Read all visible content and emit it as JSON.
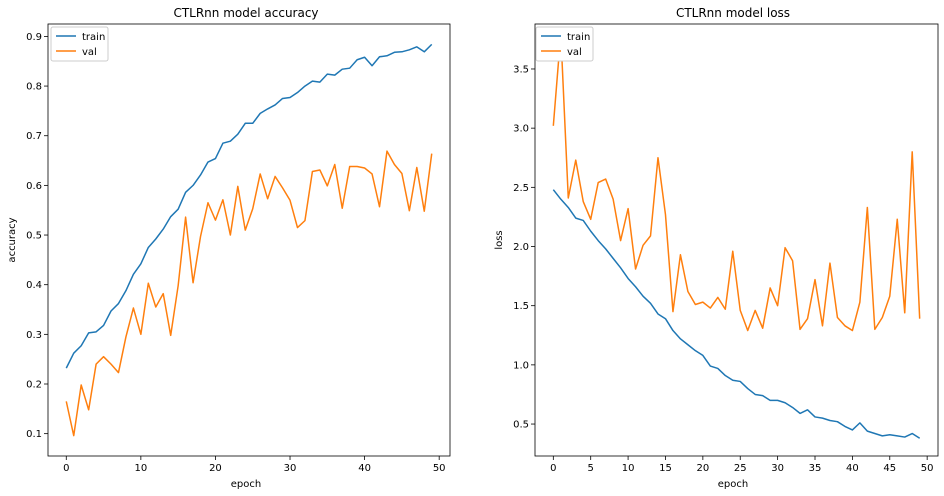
{
  "chart_data": [
    {
      "type": "line",
      "title": "CTLRnn model accuracy",
      "xlabel": "epoch",
      "ylabel": "accuracy",
      "xlim": [
        -2.45,
        51.45
      ],
      "ylim": [
        0.055,
        0.925
      ],
      "xticks": [
        0,
        10,
        20,
        30,
        40,
        50
      ],
      "yticks": [
        0.1,
        0.2,
        0.3,
        0.4,
        0.5,
        0.6,
        0.7,
        0.8,
        0.9
      ],
      "legend": "top-left",
      "grid": false,
      "x": [
        0,
        1,
        2,
        3,
        4,
        5,
        6,
        7,
        8,
        9,
        10,
        11,
        12,
        13,
        14,
        15,
        16,
        17,
        18,
        19,
        20,
        21,
        22,
        23,
        24,
        25,
        26,
        27,
        28,
        29,
        30,
        31,
        32,
        33,
        34,
        35,
        36,
        37,
        38,
        39,
        40,
        41,
        42,
        43,
        44,
        45,
        46,
        47,
        48,
        49
      ],
      "series": [
        {
          "name": "train",
          "color": "#1f77b4",
          "values": [
            0.232,
            0.262,
            0.277,
            0.303,
            0.305,
            0.318,
            0.347,
            0.362,
            0.388,
            0.421,
            0.442,
            0.475,
            0.492,
            0.512,
            0.537,
            0.552,
            0.586,
            0.6,
            0.621,
            0.647,
            0.654,
            0.685,
            0.689,
            0.703,
            0.725,
            0.725,
            0.745,
            0.754,
            0.762,
            0.775,
            0.777,
            0.787,
            0.8,
            0.81,
            0.808,
            0.824,
            0.822,
            0.834,
            0.836,
            0.853,
            0.858,
            0.841,
            0.859,
            0.861,
            0.868,
            0.869,
            0.873,
            0.879,
            0.869,
            0.884
          ]
        },
        {
          "name": "val",
          "color": "#ff7f0e",
          "values": [
            0.165,
            0.096,
            0.198,
            0.148,
            0.24,
            0.255,
            0.24,
            0.223,
            0.295,
            0.353,
            0.3,
            0.403,
            0.355,
            0.382,
            0.298,
            0.398,
            0.536,
            0.404,
            0.497,
            0.565,
            0.53,
            0.571,
            0.5,
            0.598,
            0.51,
            0.553,
            0.623,
            0.573,
            0.618,
            0.595,
            0.57,
            0.515,
            0.529,
            0.628,
            0.631,
            0.599,
            0.642,
            0.554,
            0.638,
            0.638,
            0.635,
            0.623,
            0.557,
            0.669,
            0.642,
            0.624,
            0.549,
            0.636,
            0.548,
            0.664
          ]
        }
      ]
    },
    {
      "type": "line",
      "title": "CTLRnn model loss",
      "xlabel": "epoch",
      "ylabel": "loss",
      "xlim": [
        -2.45,
        51.45
      ],
      "ylim": [
        0.23,
        3.88
      ],
      "xticks": [
        0,
        5,
        10,
        15,
        20,
        25,
        30,
        35,
        40,
        45,
        50
      ],
      "yticks": [
        0.5,
        1.0,
        1.5,
        2.0,
        2.5,
        3.0,
        3.5
      ],
      "legend": "top-left",
      "grid": false,
      "x": [
        0,
        1,
        2,
        3,
        4,
        5,
        6,
        7,
        8,
        9,
        10,
        11,
        12,
        13,
        14,
        15,
        16,
        17,
        18,
        19,
        20,
        21,
        22,
        23,
        24,
        25,
        26,
        27,
        28,
        29,
        30,
        31,
        32,
        33,
        34,
        35,
        36,
        37,
        38,
        39,
        40,
        41,
        42,
        43,
        44,
        45,
        46,
        47,
        48,
        49
      ],
      "series": [
        {
          "name": "train",
          "color": "#1f77b4",
          "values": [
            2.48,
            2.4,
            2.33,
            2.24,
            2.22,
            2.13,
            2.05,
            1.98,
            1.9,
            1.82,
            1.73,
            1.66,
            1.58,
            1.52,
            1.43,
            1.39,
            1.29,
            1.22,
            1.17,
            1.12,
            1.08,
            0.99,
            0.97,
            0.91,
            0.87,
            0.86,
            0.8,
            0.75,
            0.74,
            0.7,
            0.7,
            0.68,
            0.64,
            0.59,
            0.62,
            0.56,
            0.55,
            0.53,
            0.52,
            0.48,
            0.45,
            0.51,
            0.44,
            0.42,
            0.4,
            0.41,
            0.4,
            0.39,
            0.42,
            0.38
          ]
        },
        {
          "name": "val",
          "color": "#ff7f0e",
          "values": [
            3.02,
            3.8,
            2.41,
            2.73,
            2.38,
            2.23,
            2.54,
            2.57,
            2.4,
            2.05,
            2.32,
            1.81,
            2.01,
            2.09,
            2.75,
            2.27,
            1.45,
            1.93,
            1.62,
            1.51,
            1.53,
            1.48,
            1.57,
            1.47,
            1.96,
            1.46,
            1.29,
            1.46,
            1.31,
            1.65,
            1.5,
            1.99,
            1.88,
            1.3,
            1.39,
            1.72,
            1.33,
            1.86,
            1.4,
            1.33,
            1.29,
            1.53,
            2.33,
            1.3,
            1.4,
            1.58,
            2.23,
            1.44,
            2.8,
            1.39
          ]
        }
      ]
    }
  ]
}
